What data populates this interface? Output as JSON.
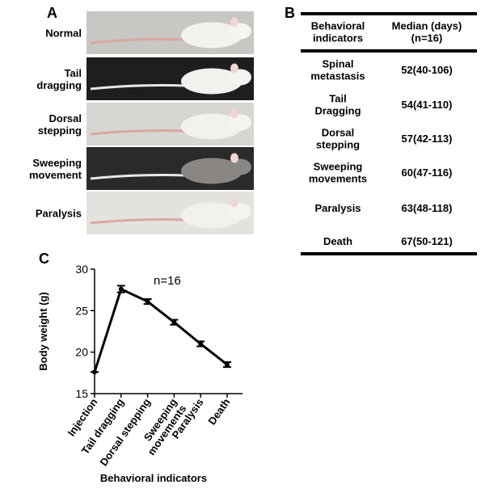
{
  "panel_a": {
    "label": "A",
    "rows": [
      "Normal",
      "Tail\ndragging",
      "Dorsal\nstepping",
      "Sweeping\nmovement",
      "Paralysis"
    ]
  },
  "panel_b": {
    "label": "B",
    "header": [
      "Behavioral\nindicators",
      "Median (days)\n(n=16)"
    ],
    "rows": [
      [
        "Spinal\nmetastasis",
        "52(40-106)"
      ],
      [
        "Tail\nDragging",
        "54(41-110)"
      ],
      [
        "Dorsal\nstepping",
        "57(42-113)"
      ],
      [
        "Sweeping\nmovements",
        "60(47-116)"
      ],
      [
        "Paralysis",
        "63(48-118)"
      ],
      [
        "Death",
        "67(50-121)"
      ]
    ]
  },
  "chart_data": {
    "type": "line",
    "panel_label": "C",
    "annotation": "n=16",
    "x_label": "Behavioral indicators",
    "y_label": "Body weight (g)",
    "categories": [
      "Injection",
      "Tail dragging",
      "Dorsal stepping",
      "Sweeping\nmovements",
      "Paralysis",
      "Death"
    ],
    "values": [
      17.6,
      27.6,
      26.1,
      23.6,
      21.0,
      18.5
    ],
    "errors": [
      0,
      0.4,
      0.3,
      0.3,
      0.3,
      0.3
    ],
    "color": "#000000",
    "ylim": [
      15,
      30
    ],
    "yticks": [
      15,
      20,
      25,
      30
    ]
  }
}
